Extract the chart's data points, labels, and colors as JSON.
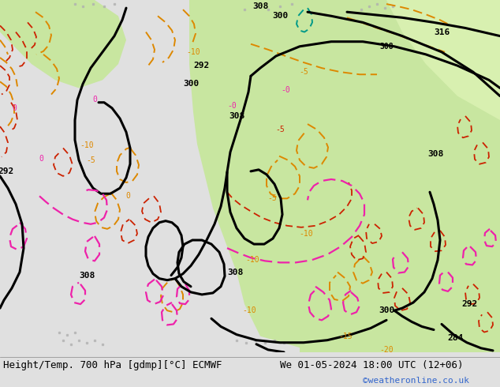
{
  "title_left": "Height/Temp. 700 hPa [gdmp][°C] ECMWF",
  "title_right": "We 01-05-2024 18:00 UTC (12+06)",
  "watermark": "©weatheronline.co.uk",
  "bg_gray": "#c8c8c8",
  "bg_green": "#c8e6a0",
  "bg_green_light": "#d8f0b0",
  "bottom_color": "#e0e0e0",
  "title_font_size": 9,
  "watermark_color": "#3366cc",
  "fig_width": 6.34,
  "fig_height": 4.9,
  "dpi": 100,
  "black_contour_lw": 2.2,
  "orange_lw": 1.4,
  "red_lw": 1.3,
  "pink_lw": 1.6
}
